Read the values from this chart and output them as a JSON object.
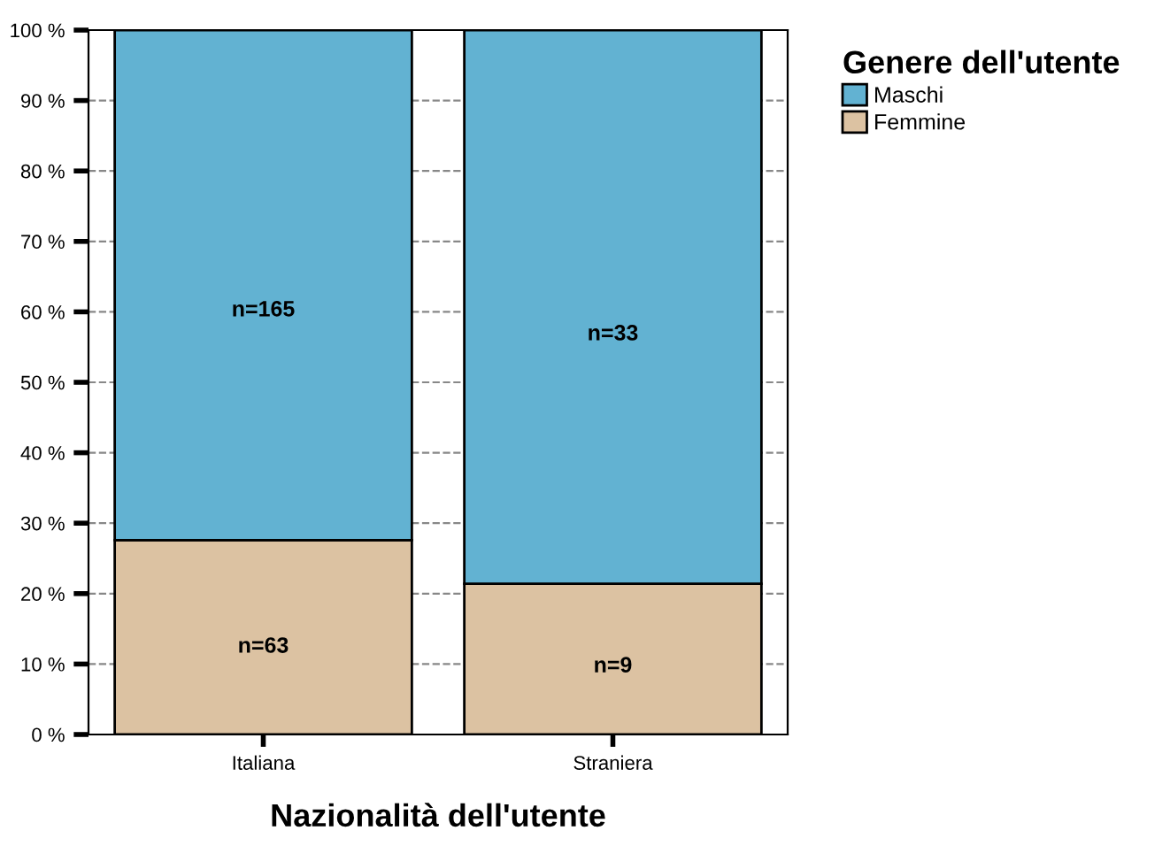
{
  "chart_data": {
    "type": "bar",
    "stacked": true,
    "xlabel": "Nazionalità dell'utente",
    "legend_title": "Genere dell'utente",
    "legend": "top right",
    "grid": "y",
    "line_style": "dashed",
    "categories": [
      "Italiana",
      "Straniera"
    ],
    "series": [
      {
        "name": "Femmine",
        "color": "#dcc2a2",
        "values": [
          27.6,
          21.4
        ]
      },
      {
        "name": "Maschi",
        "color": "#62b2d2",
        "values": [
          72.4,
          78.6
        ]
      }
    ],
    "annotations": [
      "n=63",
      "n=165",
      "n=9",
      "n=33"
    ],
    "ylim": [
      0,
      100
    ],
    "yticks": [
      {
        "value": 0,
        "label": "0 %"
      },
      {
        "value": 10,
        "label": "10 %"
      },
      {
        "value": 20,
        "label": "20 %"
      },
      {
        "value": 30,
        "label": "30 %"
      },
      {
        "value": 40,
        "label": "40 %"
      },
      {
        "value": 50,
        "label": "50 %"
      },
      {
        "value": 60,
        "label": "60 %"
      },
      {
        "value": 70,
        "label": "70 %"
      },
      {
        "value": 80,
        "label": "80 %"
      },
      {
        "value": 90,
        "label": "90 %"
      },
      {
        "value": 100,
        "label": "100 %"
      }
    ]
  }
}
